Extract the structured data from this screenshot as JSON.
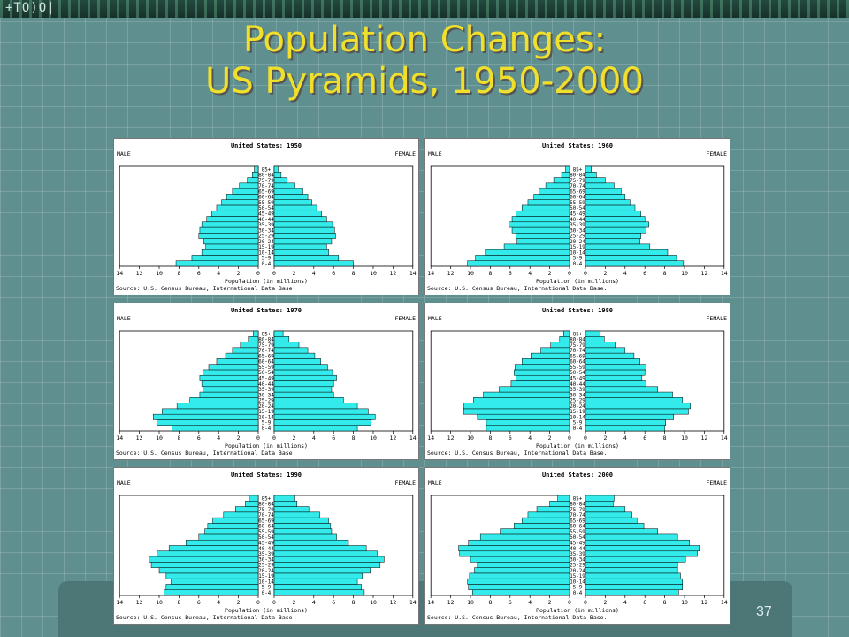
{
  "slide": {
    "banner_text": "+TO)O|",
    "title_line1": "Population Changes:",
    "title_line2": "US Pyramids, 1950-2000",
    "page_number": "37"
  },
  "chart_common": {
    "male_label": "MALE",
    "female_label": "FEMALE",
    "xlabel": "Population (in millions)",
    "source": "Source: U.S. Census Bureau, International Data Base.",
    "x_ticks": [
      "14",
      "12",
      "10",
      "8",
      "6",
      "4",
      "2",
      "0",
      "0",
      "2",
      "4",
      "6",
      "8",
      "10",
      "12",
      "14"
    ]
  },
  "chart_data": [
    {
      "type": "bar",
      "title": "United States: 1950",
      "categories": [
        "0-4",
        "5-9",
        "10-14",
        "15-19",
        "20-24",
        "25-29",
        "30-34",
        "35-39",
        "40-44",
        "45-49",
        "50-54",
        "55-59",
        "60-64",
        "65-69",
        "70-74",
        "75-79",
        "80-84",
        "85+"
      ],
      "xlim": [
        0,
        14
      ],
      "series": [
        {
          "name": "MALE",
          "values": [
            8.3,
            6.7,
            5.7,
            5.3,
            5.5,
            6.0,
            5.9,
            5.7,
            5.2,
            4.7,
            4.2,
            3.7,
            3.2,
            2.6,
            1.9,
            1.1,
            0.6,
            0.4
          ]
        },
        {
          "name": "FEMALE",
          "values": [
            8.0,
            6.5,
            5.5,
            5.3,
            5.8,
            6.2,
            6.1,
            5.9,
            5.3,
            4.8,
            4.3,
            3.8,
            3.4,
            2.9,
            2.1,
            1.3,
            0.7,
            0.4
          ]
        }
      ]
    },
    {
      "type": "bar",
      "title": "United States: 1960",
      "categories": [
        "0-4",
        "5-9",
        "10-14",
        "15-19",
        "20-24",
        "25-29",
        "30-34",
        "35-39",
        "40-44",
        "45-49",
        "50-54",
        "55-59",
        "60-64",
        "65-69",
        "70-74",
        "75-79",
        "80-84",
        "85+"
      ],
      "xlim": [
        0,
        14
      ],
      "series": [
        {
          "name": "MALE",
          "values": [
            10.3,
            9.5,
            8.5,
            6.6,
            5.3,
            5.4,
            5.8,
            6.1,
            5.8,
            5.4,
            4.8,
            4.2,
            3.6,
            3.1,
            2.4,
            1.6,
            0.8,
            0.4
          ]
        },
        {
          "name": "FEMALE",
          "values": [
            9.9,
            9.2,
            8.3,
            6.5,
            5.5,
            5.6,
            6.1,
            6.4,
            6.0,
            5.6,
            5.0,
            4.5,
            4.0,
            3.6,
            2.9,
            2.0,
            1.1,
            0.6
          ]
        }
      ]
    },
    {
      "type": "bar",
      "title": "United States: 1970",
      "categories": [
        "0-4",
        "5-9",
        "10-14",
        "15-19",
        "20-24",
        "25-29",
        "30-34",
        "35-39",
        "40-44",
        "45-49",
        "50-54",
        "55-59",
        "60-64",
        "65-69",
        "70-74",
        "75-79",
        "80-84",
        "85+"
      ],
      "xlim": [
        0,
        14
      ],
      "series": [
        {
          "name": "MALE",
          "values": [
            8.7,
            10.2,
            10.6,
            9.7,
            8.2,
            6.9,
            5.9,
            5.6,
            5.7,
            5.9,
            5.6,
            5.0,
            4.2,
            3.3,
            2.6,
            1.8,
            1.0,
            0.5
          ]
        },
        {
          "name": "FEMALE",
          "values": [
            8.4,
            9.8,
            10.2,
            9.5,
            8.4,
            7.0,
            6.0,
            5.8,
            6.0,
            6.3,
            5.9,
            5.4,
            4.7,
            4.1,
            3.4,
            2.5,
            1.5,
            0.9
          ]
        }
      ]
    },
    {
      "type": "bar",
      "title": "United States: 1980",
      "categories": [
        "0-4",
        "5-9",
        "10-14",
        "15-19",
        "20-24",
        "25-29",
        "30-34",
        "35-39",
        "40-44",
        "45-49",
        "50-54",
        "55-59",
        "60-64",
        "65-69",
        "70-74",
        "75-79",
        "80-84",
        "85+"
      ],
      "xlim": [
        0,
        14
      ],
      "series": [
        {
          "name": "MALE",
          "values": [
            8.4,
            8.4,
            9.3,
            10.7,
            10.7,
            9.7,
            8.7,
            7.1,
            5.9,
            5.4,
            5.6,
            5.5,
            4.8,
            3.9,
            2.9,
            1.9,
            1.0,
            0.6
          ]
        },
        {
          "name": "FEMALE",
          "values": [
            8.0,
            8.1,
            8.9,
            10.4,
            10.6,
            9.8,
            8.8,
            7.3,
            6.1,
            5.7,
            6.0,
            6.1,
            5.5,
            4.9,
            4.0,
            3.0,
            1.9,
            1.5
          ]
        }
      ]
    },
    {
      "type": "bar",
      "title": "United States: 1990",
      "categories": [
        "0-4",
        "5-9",
        "10-14",
        "15-19",
        "20-24",
        "25-29",
        "30-34",
        "35-39",
        "40-44",
        "45-49",
        "50-54",
        "55-59",
        "60-64",
        "65-69",
        "70-74",
        "75-79",
        "80-84",
        "85+"
      ],
      "xlim": [
        0,
        14
      ],
      "series": [
        {
          "name": "MALE",
          "values": [
            9.5,
            9.3,
            8.8,
            9.3,
            10.0,
            10.8,
            11.0,
            10.2,
            9.0,
            7.3,
            6.0,
            5.4,
            5.1,
            4.6,
            3.5,
            2.3,
            1.3,
            0.9
          ]
        },
        {
          "name": "FEMALE",
          "values": [
            9.1,
            8.8,
            8.4,
            8.9,
            9.7,
            10.7,
            11.1,
            10.4,
            9.3,
            7.5,
            6.3,
            5.8,
            5.7,
            5.5,
            4.6,
            3.5,
            2.3,
            2.1
          ]
        }
      ]
    },
    {
      "type": "bar",
      "title": "United States: 2000",
      "categories": [
        "0-4",
        "5-9",
        "10-14",
        "15-19",
        "20-24",
        "25-29",
        "30-34",
        "35-39",
        "40-44",
        "45-49",
        "50-54",
        "55-59",
        "60-64",
        "65-69",
        "70-74",
        "75-79",
        "80-84",
        "85+"
      ],
      "xlim": [
        0,
        14
      ],
      "series": [
        {
          "name": "MALE",
          "values": [
            9.8,
            10.2,
            10.3,
            10.1,
            9.6,
            9.3,
            10.0,
            11.1,
            11.2,
            10.2,
            9.0,
            7.0,
            5.6,
            4.8,
            4.2,
            3.3,
            2.0,
            1.2
          ]
        },
        {
          "name": "FEMALE",
          "values": [
            9.4,
            9.8,
            9.8,
            9.6,
            9.3,
            9.3,
            10.1,
            11.3,
            11.5,
            10.5,
            9.3,
            7.3,
            5.9,
            5.2,
            4.7,
            4.0,
            2.8,
            2.9
          ]
        }
      ]
    }
  ]
}
